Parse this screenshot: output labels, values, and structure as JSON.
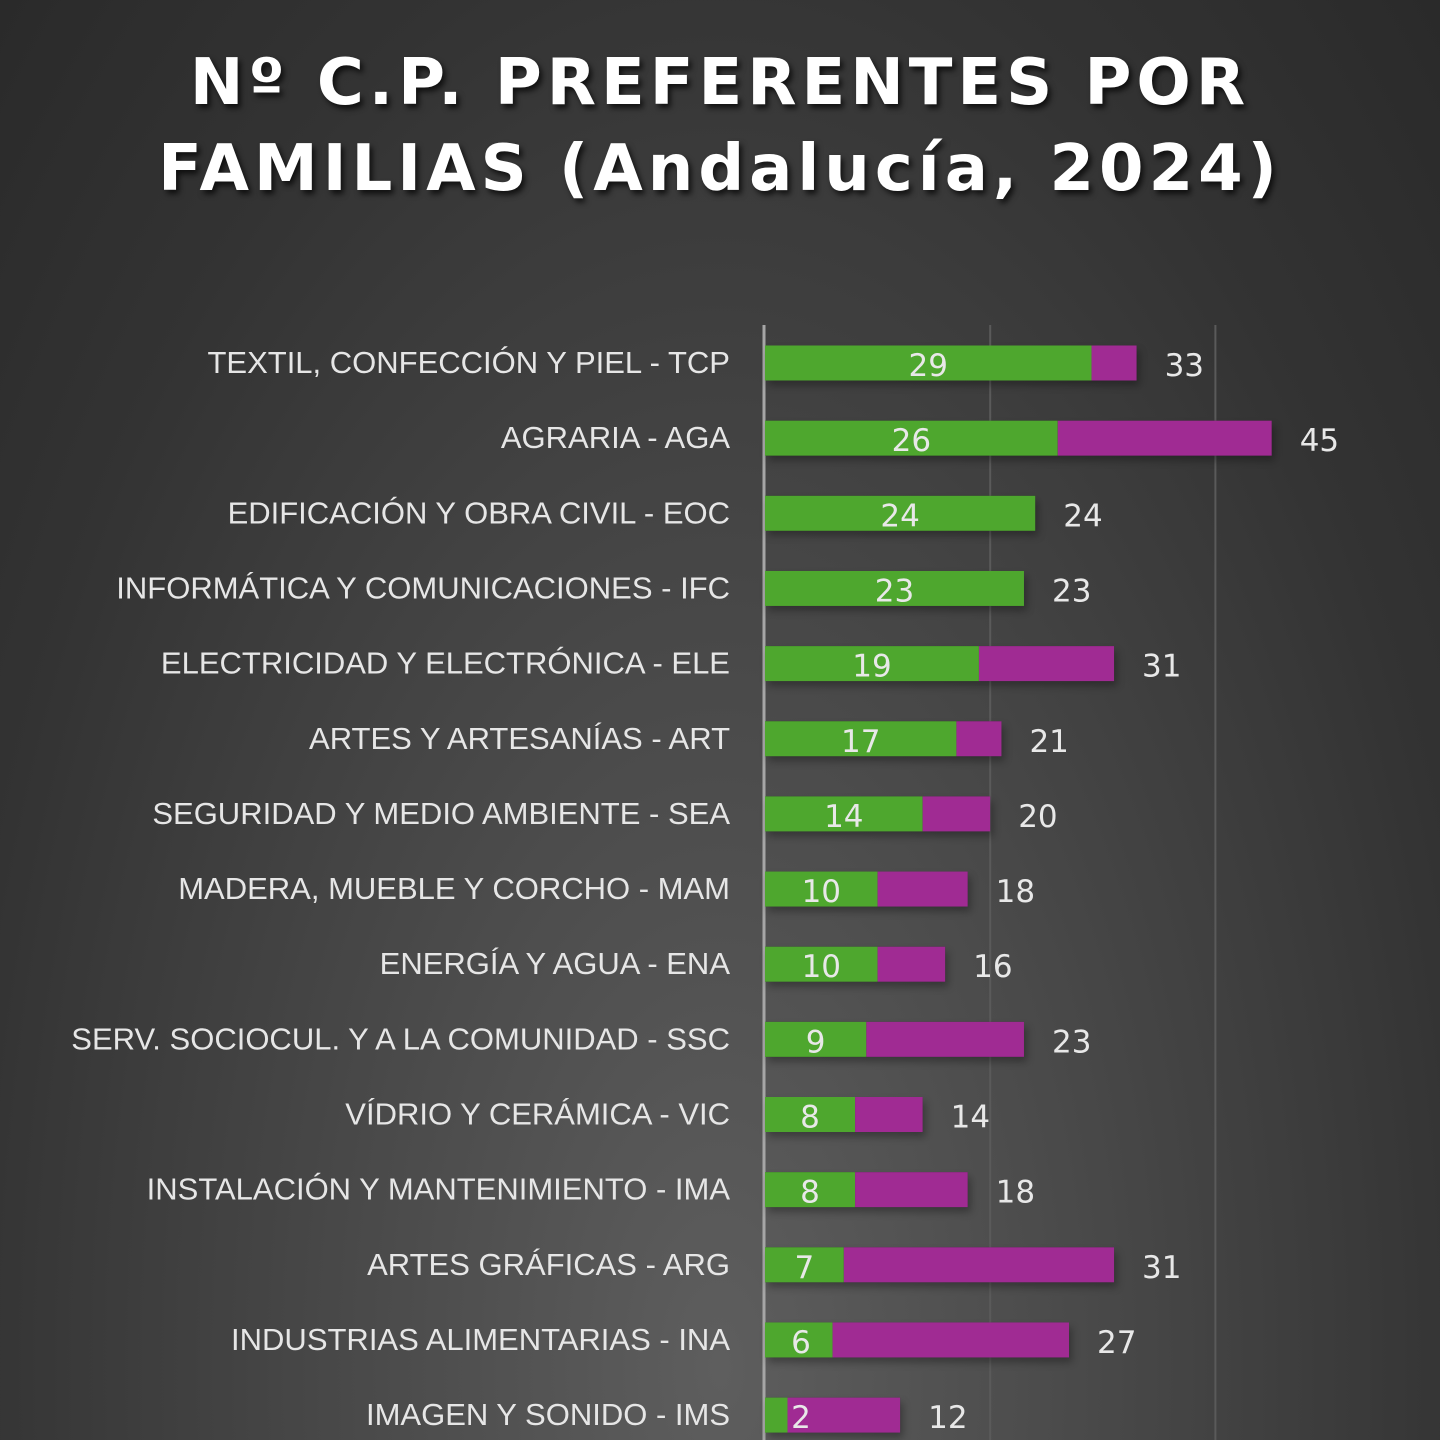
{
  "chart_data": {
    "type": "bar",
    "orientation": "horizontal",
    "stacked": true,
    "title": "Nº C.P. PREFERENTES POR FAMILIAS   (Andalucía, 2024)",
    "xlabel": "",
    "ylabel": "",
    "xlim": [
      0,
      60
    ],
    "grid": true,
    "gridline_step": 20,
    "legend": "none",
    "colors": {
      "preferentes": "#4ea72e",
      "resto": "#a02b93"
    },
    "categories": [
      "TEXTIL, CONFECCIÓN Y PIEL - TCP",
      "AGRARIA - AGA",
      "EDIFICACIÓN Y OBRA CIVIL - EOC",
      "INFORMÁTICA Y COMUNICACIONES - IFC",
      "ELECTRICIDAD Y ELECTRÓNICA - ELE",
      "ARTES Y ARTESANÍAS - ART",
      "SEGURIDAD Y MEDIO AMBIENTE - SEA",
      "MADERA, MUEBLE Y CORCHO - MAM",
      "ENERGÍA Y AGUA - ENA",
      "SERV. SOCIOCUL. Y A LA COMUNIDAD - SSC",
      "VÍDRIO Y CERÁMICA - VIC",
      "INSTALACIÓN Y MANTENIMIENTO - IMA",
      "ARTES GRÁFICAS - ARG",
      "INDUSTRIAS ALIMENTARIAS - INA",
      "IMAGEN Y SONIDO - IMS"
    ],
    "series": [
      {
        "values": [
          29,
          26,
          24,
          23,
          19,
          17,
          14,
          10,
          10,
          9,
          8,
          8,
          7,
          6,
          2
        ]
      },
      {
        "values": [
          4,
          19,
          0,
          0,
          12,
          4,
          6,
          8,
          6,
          14,
          6,
          10,
          24,
          21,
          10
        ]
      }
    ],
    "totals": [
      33,
      45,
      24,
      23,
      31,
      21,
      20,
      18,
      16,
      23,
      14,
      18,
      31,
      27,
      12
    ]
  }
}
